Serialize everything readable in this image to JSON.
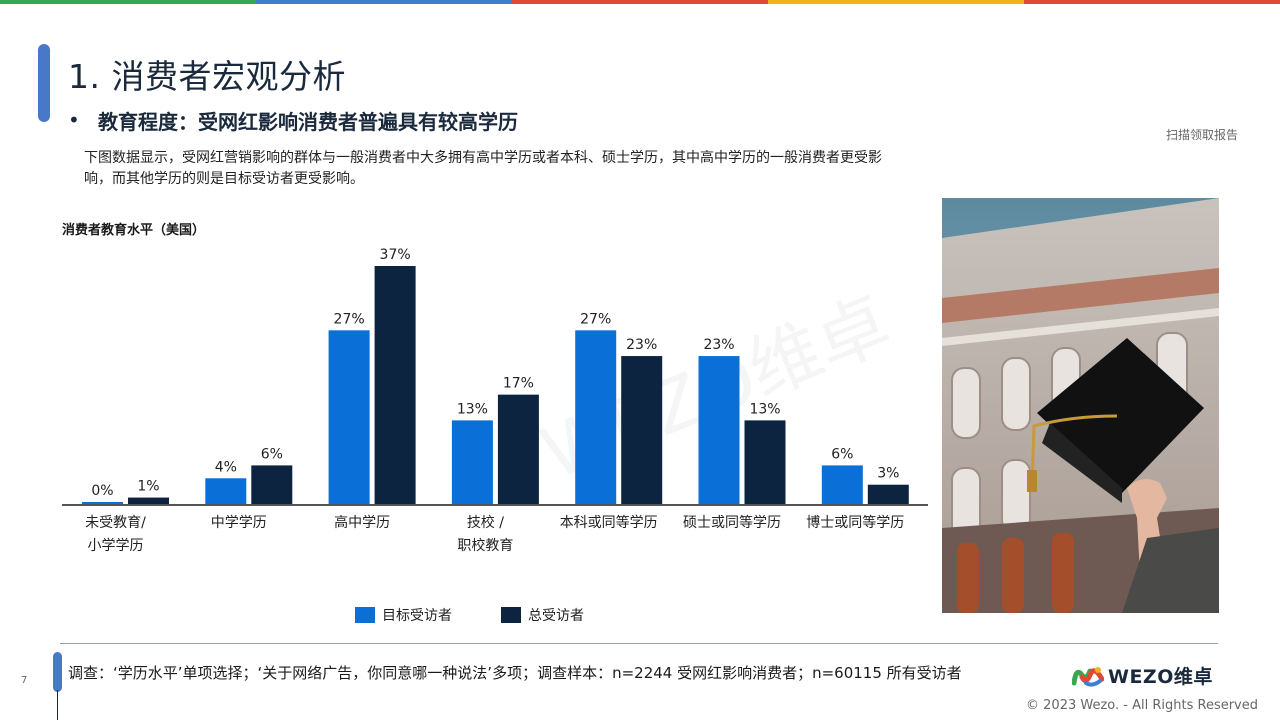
{
  "header": {
    "title": "1. 消费者宏观分析",
    "bullet": "•",
    "subtitle": "教育程度：受网红影响消费者普遍具有较高学历",
    "scan_note": "扫描领取报告",
    "description": "下图数据显示，受网红营销影响的群体与一般消费者中大多拥有高中学历或者本科、硕士学历，其中高中学历的一般消费者更受影响，而其他学历的则是目标受访者更受影响。"
  },
  "top_bar_colors": [
    "#34a853",
    "#3f7fd0",
    "#e04a35",
    "#f2b01e",
    "#e04a35"
  ],
  "chart_data": {
    "type": "bar",
    "title": "消费者教育水平（美国）",
    "categories": [
      [
        "未受教育/",
        "小学学历"
      ],
      [
        "中学学历"
      ],
      [
        "高中学历"
      ],
      [
        "技校 /",
        "职校教育"
      ],
      [
        "本科或同等学历"
      ],
      [
        "硕士或同等学历"
      ],
      [
        "博士或同等学历"
      ]
    ],
    "series": [
      {
        "name": "目标受访者",
        "color": "#0a6fd6",
        "values": [
          0,
          4,
          27,
          13,
          27,
          23,
          6
        ],
        "labels": [
          "0%",
          "4%",
          "27%",
          "13%",
          "27%",
          "23%",
          "6%"
        ]
      },
      {
        "name": "总受访者",
        "color": "#0c2440",
        "values": [
          1,
          6,
          37,
          17,
          23,
          13,
          3
        ],
        "labels": [
          "1%",
          "6%",
          "37%",
          "17%",
          "23%",
          "13%",
          "3%"
        ]
      }
    ],
    "unit": "%",
    "ylim": [
      0,
      37
    ],
    "grid": false,
    "legend_position": "bottom"
  },
  "watermark": "WEZO维卓",
  "footer": {
    "page_number": "7",
    "survey_note": "调查：‘学历水平’单项选择；‘关于网络广告，你同意哪一种说法’多项；调查样本：n=2244 受网红影响消费者；n=60115 所有受访者",
    "logo_text": "WEZO维卓",
    "copyright": "© 2023 Wezo. - All Rights Reserved"
  }
}
